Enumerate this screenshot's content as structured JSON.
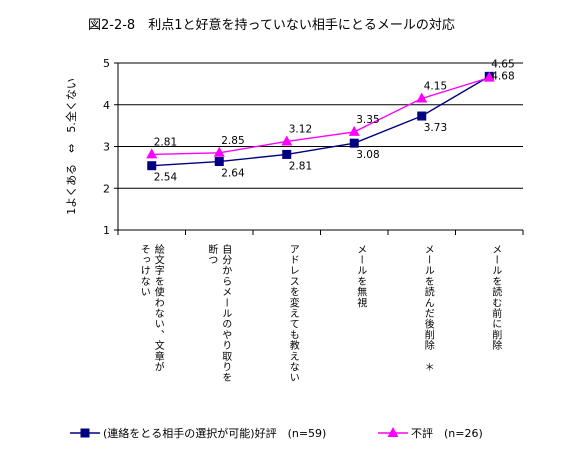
{
  "chart_data": {
    "type": "line",
    "title": "図2-2-8　利点1と好意を持っていない相手にとるメールの対応",
    "ylabel": "1よくある　⇔　5.全くない",
    "ylim": [
      1,
      5
    ],
    "yticks": [
      1,
      2,
      3,
      4,
      5
    ],
    "grid": true,
    "legend_position": "bottom",
    "categories": [
      "絵文字を使わない、文章がそっけない",
      "自分からメールのやり取りを断つ",
      "アドレスを変えても教えない",
      "メールを無視",
      "メールを読んだ後削除　＊",
      "メールを読む前に削除"
    ],
    "category_lines": [
      [
        "絵文字を使わない、文章が",
        "そっけない"
      ],
      [
        "自分からメールのやり取りを",
        "断つ"
      ],
      [
        "アドレスを変えても教えない"
      ],
      [
        "メールを無視"
      ],
      [
        "メールを読んだ後削除　＊"
      ],
      [
        "メールを読む前に削除"
      ]
    ],
    "series": [
      {
        "name": "(連絡をとる相手の選択が可能)好評　(n=59)",
        "values": [
          2.54,
          2.64,
          2.81,
          3.08,
          3.73,
          4.68
        ],
        "labels": [
          "2.54",
          "2.64",
          "2.81",
          "3.08",
          "3.73",
          "4.68"
        ],
        "color": "#000080",
        "marker": "square"
      },
      {
        "name": "不評　(n=26)",
        "values": [
          2.81,
          2.85,
          3.12,
          3.35,
          4.15,
          4.65
        ],
        "labels": [
          "2.81",
          "2.85",
          "3.12",
          "3.35",
          "4.15",
          "4.65"
        ],
        "color": "#ff00ff",
        "marker": "triangle"
      }
    ]
  }
}
